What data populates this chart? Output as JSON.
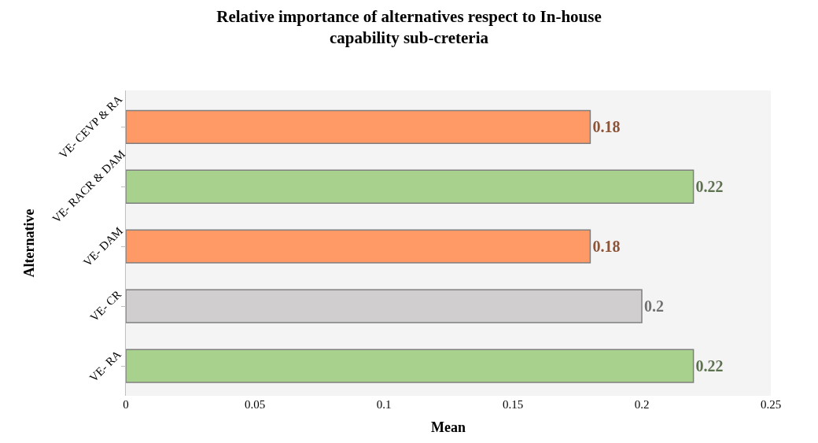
{
  "chart_data": {
    "type": "bar",
    "orientation": "horizontal",
    "title": "Relative importance of alternatives respect to In-house capability sub-creteria",
    "xlabel": "Mean",
    "ylabel": "Alternative",
    "categories": [
      "VE- CEVP & RA",
      "VE- RACR & DAM",
      "VE- DAM",
      "VE- CR",
      "VE- RA"
    ],
    "values": [
      0.18,
      0.22,
      0.18,
      0.2,
      0.22
    ],
    "colors": [
      "#ff9966",
      "#a9d18e",
      "#ff9966",
      "#d0cece",
      "#a9d18e"
    ],
    "xlim": [
      0,
      0.25
    ],
    "xticks": [
      0,
      0.05,
      0.1,
      0.15,
      0.2,
      0.25
    ],
    "data_labels": true,
    "grid": false
  }
}
